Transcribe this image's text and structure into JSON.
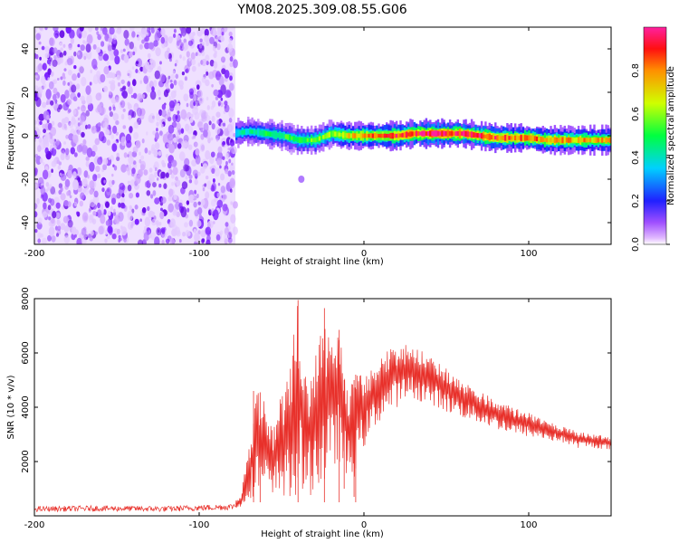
{
  "figure": {
    "title": "YM08.2025.309.08.55.G06"
  },
  "colorbar": {
    "label": "Normalized spectral amplitude",
    "ticks": [
      "0.0",
      "0.2",
      "0.4",
      "0.6",
      "0.8"
    ],
    "range": [
      0,
      1
    ],
    "colormap": "rainbow (magenta → red)"
  },
  "chart_data": [
    {
      "type": "heatmap",
      "panel": "top",
      "xlabel": "Height of straight line (km)",
      "ylabel": "Frequency (Hz)",
      "xlim": [
        -200,
        150
      ],
      "ylim": [
        -50,
        50
      ],
      "xticks": [
        "-200",
        "-100",
        "0",
        "100"
      ],
      "yticks": [
        "-40",
        "-20",
        "0",
        "20",
        "40"
      ],
      "noise_region_km": [
        -200,
        -78
      ],
      "signal_trace": {
        "x": [
          -80,
          -70,
          -60,
          -50,
          -40,
          -30,
          -20,
          -10,
          0,
          10,
          20,
          30,
          40,
          50,
          60,
          70,
          80,
          90,
          100,
          110,
          120,
          130,
          140,
          150
        ],
        "y": [
          1,
          2,
          1,
          0,
          -2,
          -2,
          1,
          0,
          0,
          0,
          0,
          1,
          1,
          1,
          1,
          0,
          -1,
          -1,
          -1,
          -2,
          -2,
          -2,
          -2,
          -2
        ]
      },
      "trace_amplitude": {
        "x": [
          -80,
          -60,
          -40,
          -20,
          0,
          20,
          40,
          60,
          80,
          100,
          120,
          150
        ],
        "amp": [
          0.35,
          0.45,
          0.5,
          0.6,
          0.75,
          0.85,
          0.95,
          0.9,
          0.85,
          0.8,
          0.75,
          0.7
        ]
      },
      "stray_blob": {
        "x": -38,
        "y": -20
      }
    },
    {
      "type": "line",
      "panel": "bottom",
      "color": "#e8302a",
      "xlabel": "Height of straight line (km)",
      "ylabel": "SNR (10 * v/v)",
      "xlim": [
        -200,
        150
      ],
      "ylim": [
        0,
        8000
      ],
      "xticks": [
        "-200",
        "-100",
        "0",
        "100"
      ],
      "yticks": [
        "2000",
        "4000",
        "6000",
        "8000"
      ],
      "envelope": {
        "x": [
          -200,
          -160,
          -120,
          -80,
          -75,
          -70,
          -65,
          -60,
          -55,
          -50,
          -45,
          -40,
          -35,
          -30,
          -25,
          -20,
          -15,
          -10,
          -5,
          0,
          5,
          10,
          15,
          20,
          25,
          30,
          35,
          40,
          45,
          50,
          60,
          70,
          80,
          90,
          100,
          110,
          120,
          130,
          140,
          150
        ],
        "lower": [
          150,
          170,
          150,
          220,
          300,
          600,
          800,
          600,
          400,
          900,
          200,
          700,
          500,
          1000,
          800,
          1500,
          2000,
          1000,
          1500,
          2500,
          3000,
          3500,
          3800,
          4000,
          4200,
          4300,
          4200,
          4000,
          4000,
          3800,
          3600,
          3400,
          3200,
          3000,
          2900,
          2800,
          2700,
          2500,
          2500,
          2400
        ],
        "upper": [
          350,
          380,
          360,
          450,
          700,
          2500,
          4600,
          4200,
          3400,
          4500,
          5400,
          8000,
          5000,
          5800,
          7700,
          6500,
          6900,
          5000,
          5200,
          5300,
          5600,
          6000,
          6200,
          6300,
          6300,
          6200,
          6100,
          5900,
          5700,
          5500,
          5000,
          4600,
          4300,
          4000,
          3800,
          3500,
          3300,
          3100,
          3000,
          2900
        ]
      },
      "spikes": [
        {
          "x": -40,
          "y": 7950
        },
        {
          "x": -24,
          "y": 7650
        },
        {
          "x": -15,
          "y": 6850
        },
        {
          "x": -67,
          "y": 4600
        },
        {
          "x": -63,
          "y": 4550
        },
        {
          "x": -5,
          "y": 5200
        },
        {
          "x": -12,
          "y": 1000
        },
        {
          "x": -6,
          "y": 700
        }
      ]
    }
  ]
}
